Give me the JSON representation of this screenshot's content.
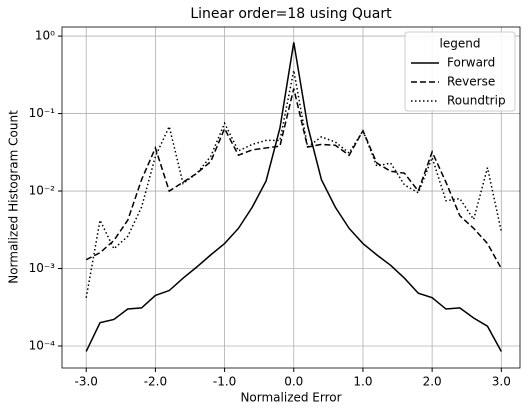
{
  "chart_data": {
    "type": "line",
    "title": "Linear order=18 using Quart",
    "xlabel": "Normalized Error",
    "ylabel": "Normalized Histogram Count",
    "x": [
      -3.0,
      -2.8,
      -2.6,
      -2.4,
      -2.2,
      -2.0,
      -1.8,
      -1.6,
      -1.4,
      -1.2,
      -1.0,
      -0.8,
      -0.6,
      -0.4,
      -0.2,
      0.0,
      0.2,
      0.4,
      0.6,
      0.8,
      1.0,
      1.2,
      1.4,
      1.6,
      1.8,
      2.0,
      2.2,
      2.4,
      2.6,
      2.8,
      3.0
    ],
    "series": [
      {
        "name": "Forward",
        "color": "#000000",
        "style": "solid",
        "values": [
          8.5e-05,
          0.0002,
          0.00022,
          0.0003,
          0.00031,
          0.00045,
          0.00052,
          0.00075,
          0.00105,
          0.0015,
          0.0021,
          0.0033,
          0.0062,
          0.0135,
          0.065,
          0.83,
          0.07,
          0.014,
          0.0062,
          0.0033,
          0.0021,
          0.0015,
          0.0011,
          0.00075,
          0.00048,
          0.00042,
          0.0003,
          0.00031,
          0.00023,
          0.00018,
          8.5e-05
        ]
      },
      {
        "name": "Reverse",
        "color": "#000000",
        "style": "dashed",
        "values": [
          0.0013,
          0.0016,
          0.0023,
          0.0042,
          0.014,
          0.036,
          0.01,
          0.013,
          0.017,
          0.024,
          0.064,
          0.029,
          0.034,
          0.036,
          0.038,
          0.21,
          0.037,
          0.04,
          0.039,
          0.029,
          0.06,
          0.023,
          0.018,
          0.017,
          0.01,
          0.032,
          0.013,
          0.0048,
          0.0033,
          0.0021,
          0.001
        ]
      },
      {
        "name": "Roundtrip",
        "color": "#000000",
        "style": "dotted",
        "values": [
          0.00042,
          0.0042,
          0.0018,
          0.0026,
          0.0062,
          0.028,
          0.068,
          0.0125,
          0.017,
          0.028,
          0.075,
          0.033,
          0.04,
          0.045,
          0.045,
          0.36,
          0.037,
          0.05,
          0.043,
          0.031,
          0.06,
          0.021,
          0.023,
          0.012,
          0.0095,
          0.027,
          0.0075,
          0.008,
          0.0043,
          0.02,
          0.003
        ]
      }
    ],
    "xlim": [
      -3.35,
      3.27
    ],
    "xticks": [
      {
        "value": -3,
        "label": "-3.0"
      },
      {
        "value": -2,
        "label": "-2.0"
      },
      {
        "value": -1,
        "label": "-1.0"
      },
      {
        "value": 0,
        "label": "0.0"
      },
      {
        "value": 1,
        "label": "1.0"
      },
      {
        "value": 2,
        "label": "2.0"
      },
      {
        "value": 3,
        "label": "3.0"
      }
    ],
    "ylim": [
      5.2e-05,
      1.31
    ],
    "ylog": true,
    "yticks": [
      {
        "value": 0.0001,
        "label": "10⁻⁴"
      },
      {
        "value": 0.001,
        "label": "10⁻³"
      },
      {
        "value": 0.01,
        "label": "10⁻²"
      },
      {
        "value": 0.1,
        "label": "10⁻¹"
      },
      {
        "value": 1,
        "label": "10⁰"
      }
    ],
    "grid": true,
    "legend_title": "legend",
    "legend_position": "upper-right"
  }
}
